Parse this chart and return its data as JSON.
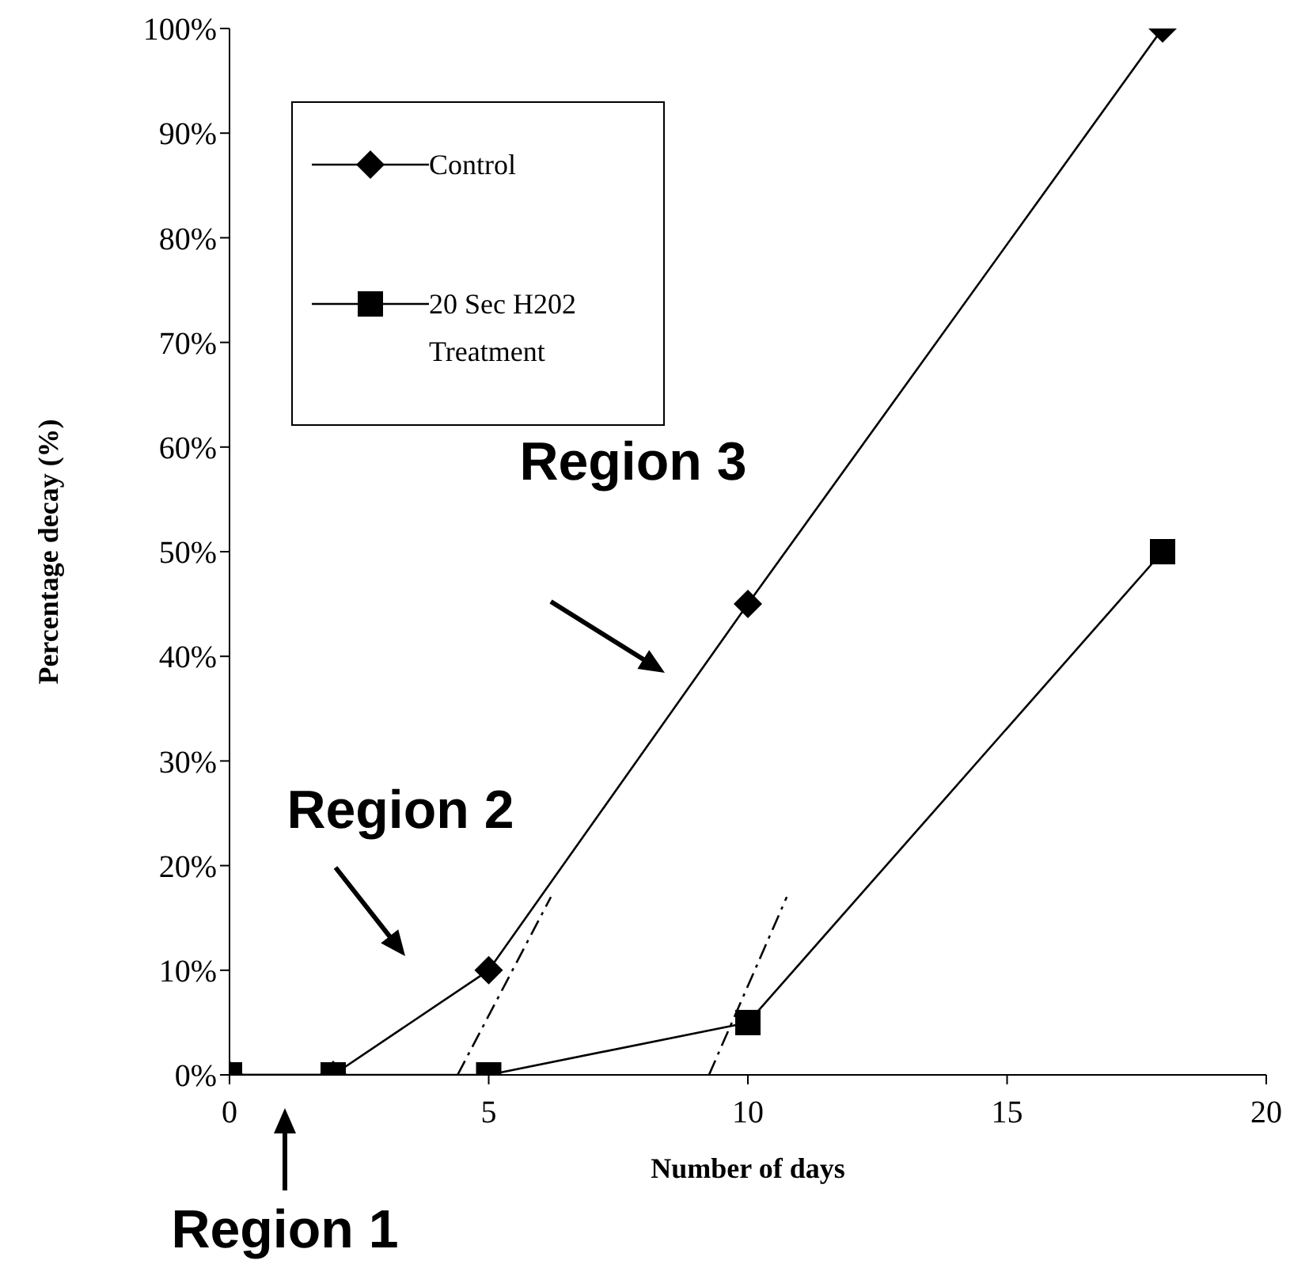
{
  "chart_data": {
    "type": "line",
    "xlabel": "Number of days",
    "ylabel": "Percentage decay (%)",
    "xlim": [
      0,
      20
    ],
    "xticks": [
      0,
      5,
      10,
      15,
      20
    ],
    "ylim": [
      0,
      100
    ],
    "yticks": [
      {
        "value": 0,
        "label": "0%"
      },
      {
        "value": 10,
        "label": "10%"
      },
      {
        "value": 20,
        "label": "20%"
      },
      {
        "value": 30,
        "label": "30%"
      },
      {
        "value": 40,
        "label": "40%"
      },
      {
        "value": 50,
        "label": "50%"
      },
      {
        "value": 60,
        "label": "60%"
      },
      {
        "value": 70,
        "label": "70%"
      },
      {
        "value": 80,
        "label": "80%"
      },
      {
        "value": 90,
        "label": "90%"
      },
      {
        "value": 100,
        "label": "100%"
      }
    ],
    "grid": false,
    "legend": "top left",
    "line_style": "solid",
    "series": [
      {
        "name": "Control",
        "color": "#000000",
        "marker": "diamond",
        "x": [
          0,
          2,
          5,
          10,
          18
        ],
        "values": [
          0,
          0,
          10,
          45,
          100
        ]
      },
      {
        "name": "20 Sec H202 Treatment",
        "color": "#000000",
        "marker": "square",
        "x": [
          0,
          2,
          5,
          10,
          18
        ],
        "values": [
          0,
          0,
          0,
          5,
          50
        ]
      },
      {
        "type": "line",
        "color": "#000000",
        "marker": "none",
        "line_style": "dashed",
        "x": [
          4.4,
          6.2
        ],
        "values": [
          0,
          17
        ]
      },
      {
        "type": "line",
        "color": "#000000",
        "marker": "none",
        "line_style": "dashed",
        "x": [
          9.25,
          10.75
        ],
        "values": [
          0,
          17
        ]
      }
    ],
    "annotations": [
      "Region 3",
      "Region 2",
      "Region 1"
    ]
  }
}
